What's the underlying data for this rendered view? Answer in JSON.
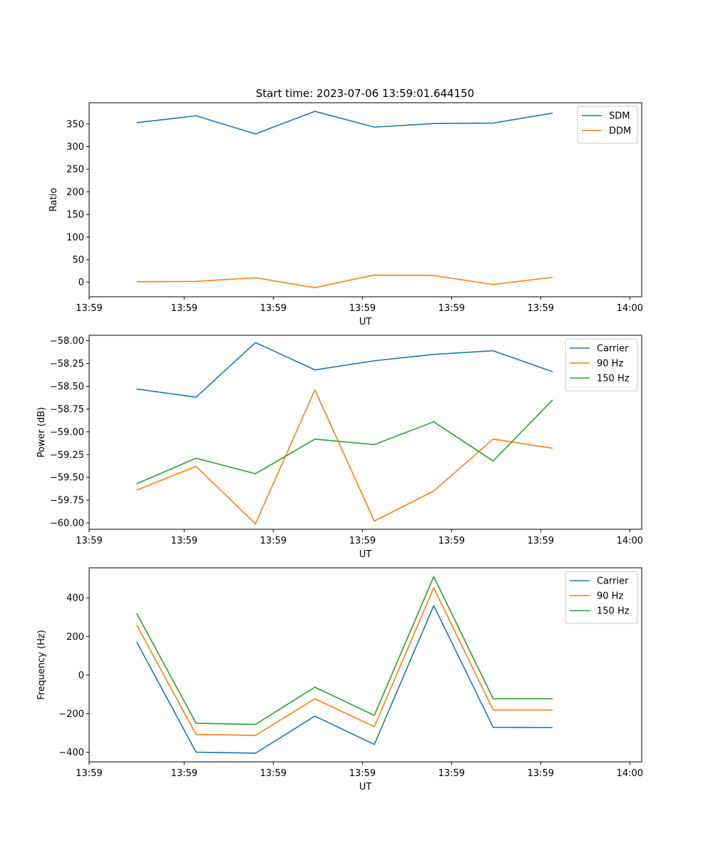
{
  "chart_data": [
    {
      "type": "line",
      "title": "Start time: 2023-07-06 13:59:01.644150",
      "xlabel": "UT",
      "ylabel": "Ratio",
      "xlim": [
        -0.8,
        8.5
      ],
      "ylim": [
        -32,
        397
      ],
      "x_ticks": [
        {
          "value": -0.8,
          "label": "13:59"
        },
        {
          "value": 0.8,
          "label": "13:59"
        },
        {
          "value": 2.3,
          "label": "13:59"
        },
        {
          "value": 3.8,
          "label": "13:59"
        },
        {
          "value": 5.3,
          "label": "13:59"
        },
        {
          "value": 6.8,
          "label": "13:59"
        },
        {
          "value": 8.3,
          "label": "14:00"
        }
      ],
      "y_ticks": [
        0,
        50,
        100,
        150,
        200,
        250,
        300,
        350
      ],
      "legend_position": "top-right",
      "x": [
        0,
        1,
        2,
        3,
        4,
        5,
        6,
        7
      ],
      "series": [
        {
          "name": "SDM",
          "color": "#1f77b4",
          "values": [
            353,
            368,
            328,
            378,
            343,
            351,
            352,
            374
          ]
        },
        {
          "name": "DDM",
          "color": "#ff7f0e",
          "values": [
            1,
            2,
            10,
            -12,
            16,
            15,
            -5,
            11
          ]
        }
      ]
    },
    {
      "type": "line",
      "title": "",
      "xlabel": "UT",
      "ylabel": "Power (dB)",
      "xlim": [
        -0.8,
        8.5
      ],
      "ylim": [
        -60.07,
        -57.94
      ],
      "x_ticks": [
        {
          "value": -0.8,
          "label": "13:59"
        },
        {
          "value": 0.8,
          "label": "13:59"
        },
        {
          "value": 2.3,
          "label": "13:59"
        },
        {
          "value": 3.8,
          "label": "13:59"
        },
        {
          "value": 5.3,
          "label": "13:59"
        },
        {
          "value": 6.8,
          "label": "13:59"
        },
        {
          "value": 8.3,
          "label": "14:00"
        }
      ],
      "y_ticks": [
        -60.0,
        -59.75,
        -59.5,
        -59.25,
        -59.0,
        -58.75,
        -58.5,
        -58.25,
        -58.0
      ],
      "y_tick_labels": [
        "−60.00",
        "−59.75",
        "−59.50",
        "−59.25",
        "−59.00",
        "−58.75",
        "−58.50",
        "−58.25",
        "−58.00"
      ],
      "legend_position": "top-right",
      "x": [
        0,
        1,
        2,
        3,
        4,
        5,
        6,
        7
      ],
      "series": [
        {
          "name": "Carrier",
          "color": "#1f77b4",
          "values": [
            -58.53,
            -58.62,
            -58.02,
            -58.32,
            -58.22,
            -58.15,
            -58.11,
            -58.34
          ]
        },
        {
          "name": "90 Hz",
          "color": "#ff7f0e",
          "values": [
            -59.64,
            -59.38,
            -60.01,
            -58.54,
            -59.98,
            -59.65,
            -59.08,
            -59.18
          ]
        },
        {
          "name": "150 Hz",
          "color": "#2ca02c",
          "values": [
            -59.57,
            -59.29,
            -59.46,
            -59.08,
            -59.14,
            -58.89,
            -59.32,
            -58.65
          ]
        }
      ]
    },
    {
      "type": "line",
      "title": "",
      "xlabel": "UT",
      "ylabel": "Frequency (Hz)",
      "xlim": [
        -0.8,
        8.5
      ],
      "ylim": [
        -450,
        556
      ],
      "x_ticks": [
        {
          "value": -0.8,
          "label": "13:59"
        },
        {
          "value": 0.8,
          "label": "13:59"
        },
        {
          "value": 2.3,
          "label": "13:59"
        },
        {
          "value": 3.8,
          "label": "13:59"
        },
        {
          "value": 5.3,
          "label": "13:59"
        },
        {
          "value": 6.8,
          "label": "13:59"
        },
        {
          "value": 8.3,
          "label": "14:00"
        }
      ],
      "y_ticks": [
        -400,
        -200,
        0,
        200,
        400
      ],
      "y_tick_labels": [
        "−400",
        "−200",
        "0",
        "200",
        "400"
      ],
      "legend_position": "top-right",
      "x": [
        0,
        1,
        2,
        3,
        4,
        5,
        6,
        7
      ],
      "series": [
        {
          "name": "Carrier",
          "color": "#1f77b4",
          "values": [
            172,
            -400,
            -405,
            -213,
            -360,
            360,
            -271,
            -272
          ]
        },
        {
          "name": "90 Hz",
          "color": "#ff7f0e",
          "values": [
            260,
            -308,
            -313,
            -123,
            -268,
            452,
            -181,
            -181
          ]
        },
        {
          "name": "150 Hz",
          "color": "#2ca02c",
          "values": [
            320,
            -250,
            -256,
            -63,
            -209,
            510,
            -123,
            -123
          ]
        }
      ]
    }
  ]
}
